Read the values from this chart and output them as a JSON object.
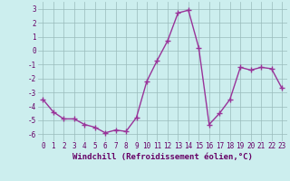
{
  "x": [
    0,
    1,
    2,
    3,
    4,
    5,
    6,
    7,
    8,
    9,
    10,
    11,
    12,
    13,
    14,
    15,
    16,
    17,
    18,
    19,
    20,
    21,
    22,
    23
  ],
  "y": [
    -3.5,
    -4.4,
    -4.9,
    -4.9,
    -5.3,
    -5.5,
    -5.9,
    -5.7,
    -5.8,
    -4.8,
    -2.2,
    -0.7,
    0.7,
    2.7,
    2.9,
    0.2,
    -5.3,
    -4.5,
    -3.5,
    -1.2,
    -1.4,
    -1.2,
    -1.3,
    -2.7
  ],
  "line_color": "#993399",
  "marker": "+",
  "marker_size": 4,
  "linewidth": 1.0,
  "xlabel": "Windchill (Refroidissement éolien,°C)",
  "ylim": [
    -6.5,
    3.5
  ],
  "xlim": [
    -0.5,
    23.5
  ],
  "yticks": [
    -6,
    -5,
    -4,
    -3,
    -2,
    -1,
    0,
    1,
    2,
    3
  ],
  "xticks": [
    0,
    1,
    2,
    3,
    4,
    5,
    6,
    7,
    8,
    9,
    10,
    11,
    12,
    13,
    14,
    15,
    16,
    17,
    18,
    19,
    20,
    21,
    22,
    23
  ],
  "bg_color": "#cceeee",
  "grid_color": "#99bbbb",
  "label_color": "#660066",
  "tick_color": "#660066",
  "tick_fontsize": 5.5,
  "xlabel_fontsize": 6.5
}
